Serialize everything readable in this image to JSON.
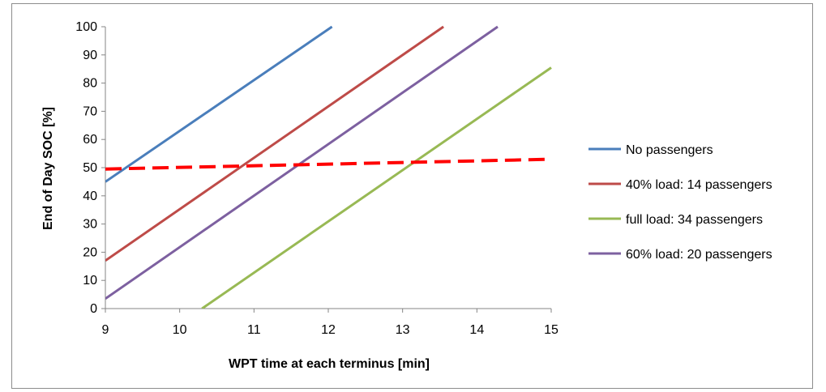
{
  "chart_data": {
    "type": "line",
    "xlabel": "WPT time at each terminus [min]",
    "ylabel": "End of Day SOC [%]",
    "xlim": [
      9,
      15
    ],
    "ylim": [
      0,
      100
    ],
    "x_ticks": [
      "9",
      "10",
      "11",
      "12",
      "13",
      "14",
      "15"
    ],
    "y_ticks": [
      "0",
      "10",
      "20",
      "30",
      "40",
      "50",
      "60",
      "70",
      "80",
      "90",
      "100"
    ],
    "grid": false,
    "legend_position": "right",
    "series": [
      {
        "name": "No passengers",
        "color": "#4a7ebb",
        "dash": false,
        "points": [
          [
            9.0,
            45.0
          ],
          [
            12.05,
            100.0
          ]
        ]
      },
      {
        "name": "40% load: 14 passengers",
        "color": "#be4b48",
        "dash": false,
        "points": [
          [
            9.0,
            17.0
          ],
          [
            13.55,
            100.0
          ]
        ]
      },
      {
        "name": "full load: 34 passengers",
        "color": "#98b954",
        "dash": false,
        "points": [
          [
            10.3,
            0.0
          ],
          [
            15.0,
            85.5
          ]
        ]
      },
      {
        "name": "60% load: 20 passengers",
        "color": "#7d60a0",
        "dash": false,
        "points": [
          [
            9.0,
            3.5
          ],
          [
            14.28,
            100.0
          ]
        ]
      },
      {
        "name": "",
        "color": "#ff0000",
        "dash": true,
        "in_legend": false,
        "points": [
          [
            9.0,
            49.5
          ],
          [
            15.0,
            53.0
          ]
        ]
      }
    ]
  }
}
